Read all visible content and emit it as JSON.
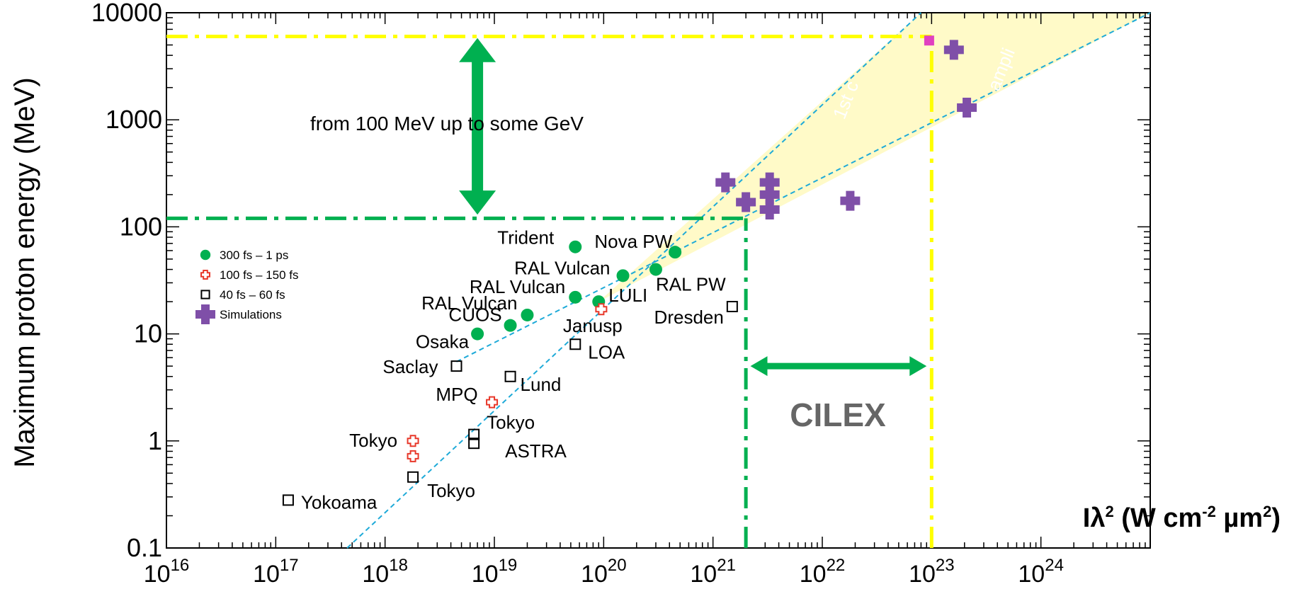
{
  "chart_data": {
    "type": "scatter",
    "title": "",
    "xlabel": "Iλ² (W cm⁻² µm²)",
    "xlabel_parts": {
      "main": "Iλ",
      "sup1": "2",
      "mid": " (W cm",
      "sup2": "-2",
      "mid2": " µm",
      "sup3": "2",
      "end": ")"
    },
    "ylabel": "Maximum proton energy (MeV)",
    "x_scale": "log",
    "y_scale": "log",
    "xlim": [
      1e+16,
      1e+25
    ],
    "ylim": [
      0.1,
      10000
    ],
    "x_ticks": [
      {
        "value": 1e+16,
        "base": "10",
        "exp": "16"
      },
      {
        "value": 1e+17,
        "base": "10",
        "exp": "17"
      },
      {
        "value": 1e+18,
        "base": "10",
        "exp": "18"
      },
      {
        "value": 1e+19,
        "base": "10",
        "exp": "19"
      },
      {
        "value": 1e+20,
        "base": "10",
        "exp": "20"
      },
      {
        "value": 1e+21,
        "base": "10",
        "exp": "21"
      },
      {
        "value": 1e+22,
        "base": "10",
        "exp": "22"
      },
      {
        "value": 1e+23,
        "base": "10",
        "exp": "23"
      },
      {
        "value": 1e+24,
        "base": "10",
        "exp": "24"
      }
    ],
    "y_ticks": [
      {
        "value": 0.1,
        "label": "0.1"
      },
      {
        "value": 1,
        "label": "1"
      },
      {
        "value": 10,
        "label": "10"
      },
      {
        "value": 100,
        "label": "100"
      },
      {
        "value": 1000,
        "label": "1000"
      },
      {
        "value": 10000,
        "label": "10000"
      }
    ],
    "legend_position": "left",
    "series": [
      {
        "name": "300 fs – 1 ps",
        "marker": "circle",
        "color": "#00b050",
        "points": [
          {
            "x": 7e+18,
            "y": 10,
            "label": "Osaka"
          },
          {
            "x": 1.4e+19,
            "y": 12,
            "label": "CUOS"
          },
          {
            "x": 2e+19,
            "y": 15,
            "label": "RAL Vulcan"
          },
          {
            "x": 5.5e+19,
            "y": 22,
            "label": "RAL Vulcan"
          },
          {
            "x": 5.5e+19,
            "y": 65,
            "label": "Trident"
          },
          {
            "x": 9e+19,
            "y": 20,
            "label": "LULI"
          },
          {
            "x": 1.5e+20,
            "y": 35,
            "label": "RAL Vulcan"
          },
          {
            "x": 3e+20,
            "y": 40,
            "label": "RAL PW"
          },
          {
            "x": 4.5e+20,
            "y": 58,
            "label": "Nova PW"
          }
        ]
      },
      {
        "name": "100 fs – 150 fs",
        "marker": "cross-open",
        "color": "#e8382a",
        "points": [
          {
            "x": 1.8e+18,
            "y": 1.0,
            "label": "Tokyo"
          },
          {
            "x": 1.8e+18,
            "y": 0.72,
            "label": ""
          },
          {
            "x": 9.5e+18,
            "y": 2.3,
            "label": "MPQ"
          },
          {
            "x": 9.5e+19,
            "y": 17,
            "label": "Janusp"
          }
        ]
      },
      {
        "name": "40 fs – 60 fs",
        "marker": "square-open",
        "color": "#000000",
        "points": [
          {
            "x": 1.3e+17,
            "y": 0.28,
            "label": "Yokoama"
          },
          {
            "x": 1.8e+18,
            "y": 0.46,
            "label": "Tokyo"
          },
          {
            "x": 6.5e+18,
            "y": 0.95,
            "label": "ASTRA"
          },
          {
            "x": 6.5e+18,
            "y": 1.15,
            "label": "Tokyo"
          },
          {
            "x": 4.5e+18,
            "y": 5,
            "label": "Saclay"
          },
          {
            "x": 1.4e+19,
            "y": 4,
            "label": "Lund"
          },
          {
            "x": 5.5e+19,
            "y": 8,
            "label": "LOA"
          },
          {
            "x": 1.5e+21,
            "y": 18,
            "label": "Dresden"
          }
        ]
      },
      {
        "name": "Simulations",
        "marker": "cross-filled",
        "color": "#7f4fa8",
        "points": [
          {
            "x": 1.3e+21,
            "y": 260
          },
          {
            "x": 2e+21,
            "y": 170
          },
          {
            "x": 3.3e+21,
            "y": 260
          },
          {
            "x": 3.3e+21,
            "y": 200
          },
          {
            "x": 3.3e+21,
            "y": 145
          },
          {
            "x": 1.8e+22,
            "y": 175
          },
          {
            "x": 1.6e+23,
            "y": 4500
          },
          {
            "x": 2.1e+23,
            "y": 1300
          }
        ]
      },
      {
        "name": "",
        "marker": "square-filled",
        "color": "#e040c0",
        "points": [
          {
            "x": 9.5e+22,
            "y": 5500
          }
        ]
      }
    ],
    "reference_lines": [
      {
        "kind": "horizontal",
        "y": 6000,
        "x_to": 1e+23,
        "color": "#ffff00",
        "style": "dash-dot"
      },
      {
        "kind": "horizontal",
        "y": 120,
        "x_to": 2e+21,
        "color": "#00b050",
        "style": "dash-dot"
      },
      {
        "kind": "vertical",
        "x": 2e+21,
        "y_to": 120,
        "color": "#00b050",
        "style": "dash-dot"
      },
      {
        "kind": "vertical",
        "x": 1e+23,
        "y_to": 6000,
        "color": "#ffff00",
        "style": "dash-dot"
      }
    ],
    "trend_lines": [
      {
        "x1": 4.5e+17,
        "y1": 0.1,
        "x2": 8e+22,
        "y2": 10000,
        "color": "#1eaad8"
      },
      {
        "x1": 4.5e+18,
        "y1": 5.5,
        "x2": 1e+25,
        "y2": 10000,
        "color": "#1eaad8"
      }
    ],
    "shaded_region": {
      "color": "#fffac8",
      "vertices": [
        {
          "x": 9e+19,
          "y": 20
        },
        {
          "x": 8e+22,
          "y": 10000
        },
        {
          "x": 1e+25,
          "y": 10000
        }
      ]
    },
    "annotations": {
      "range_text": "from 100 MeV up to some GeV",
      "cilex_text": "CILEX",
      "faint_text_1": "1st c",
      "faint_text_2": "ampli"
    },
    "arrows": [
      {
        "orientation": "vertical",
        "x": 7e+18,
        "y_from": 130,
        "y_to": 5800,
        "color": "#00b050"
      },
      {
        "orientation": "horizontal",
        "y": 5,
        "x_from": 2.2e+21,
        "x_to": 9e+22,
        "color": "#00b050"
      }
    ]
  }
}
